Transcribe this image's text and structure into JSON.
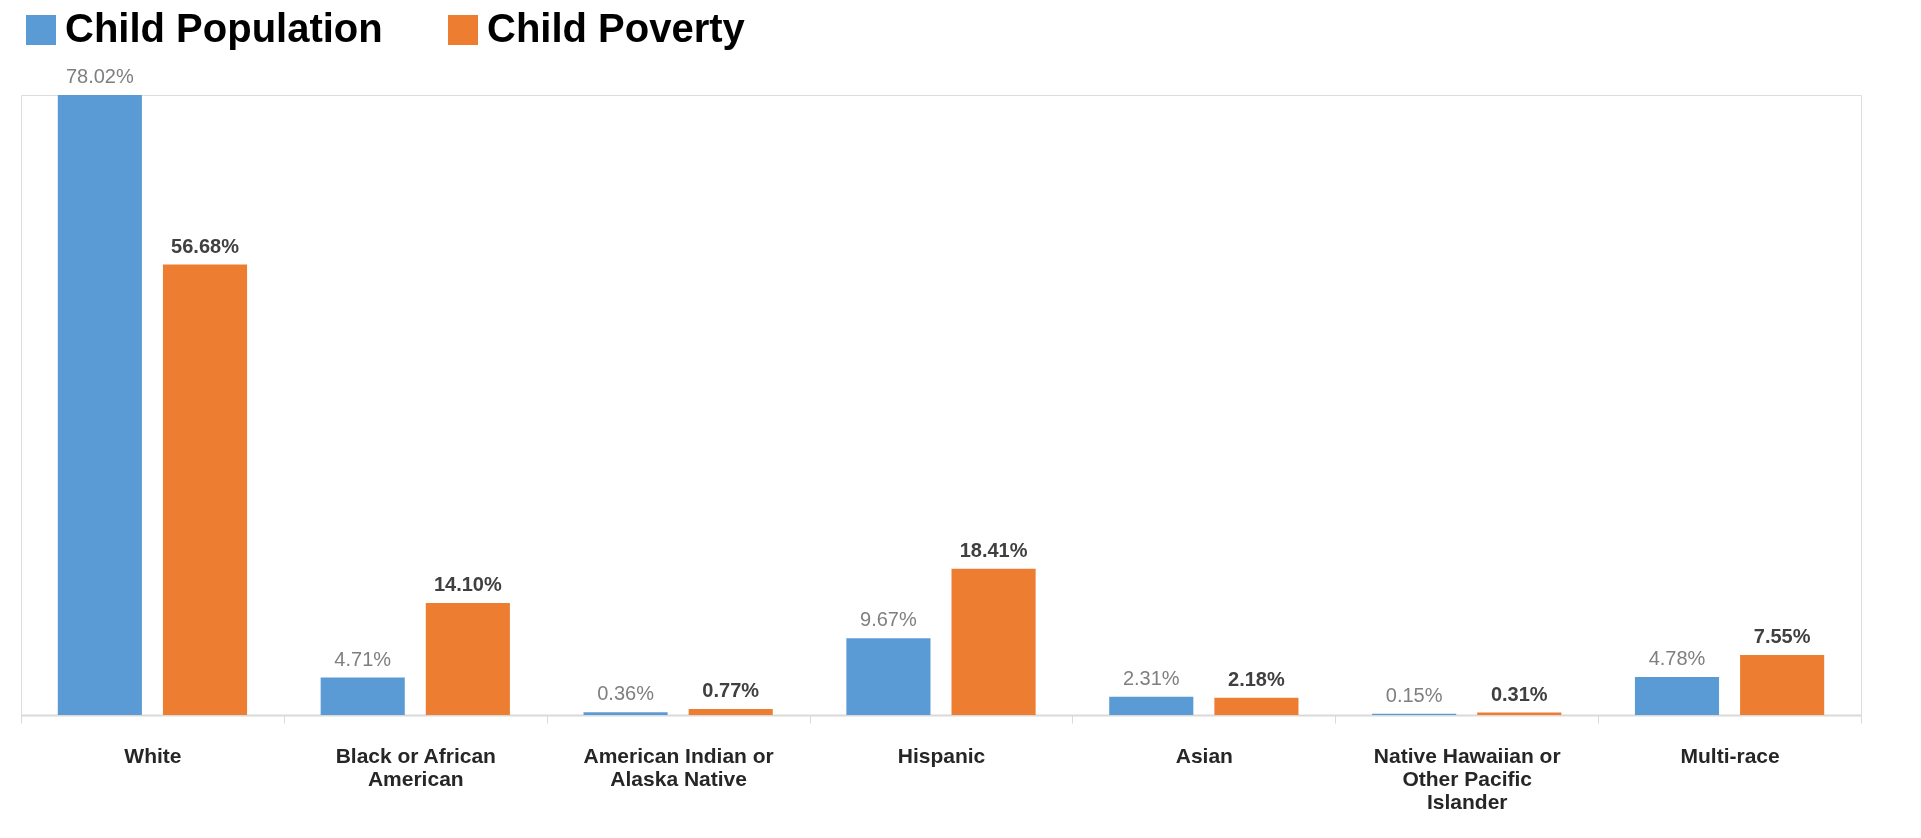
{
  "chart_data": {
    "type": "bar",
    "categories": [
      "White",
      "Black or African American",
      "American Indian or Alaska Native",
      "Hispanic",
      "Asian",
      "Native Hawaiian or Other Pacific Islander",
      "Multi-race"
    ],
    "series": [
      {
        "name": "Child Population",
        "color": "#5b9bd5",
        "values": [
          78.02,
          4.71,
          0.36,
          9.67,
          2.31,
          0.15,
          4.78
        ],
        "value_labels": [
          "78.02%",
          "4.71%",
          "0.36%",
          "9.67%",
          "2.31%",
          "0.15%",
          "4.78%"
        ]
      },
      {
        "name": "Child Poverty",
        "color": "#ed7d31",
        "values": [
          56.68,
          14.1,
          0.77,
          18.41,
          2.18,
          0.31,
          7.55
        ],
        "value_labels": [
          "56.68%",
          "14.10%",
          "0.77%",
          "18.41%",
          "2.18%",
          "0.31%",
          "7.55%"
        ]
      }
    ],
    "legend": "top",
    "grid": false
  }
}
